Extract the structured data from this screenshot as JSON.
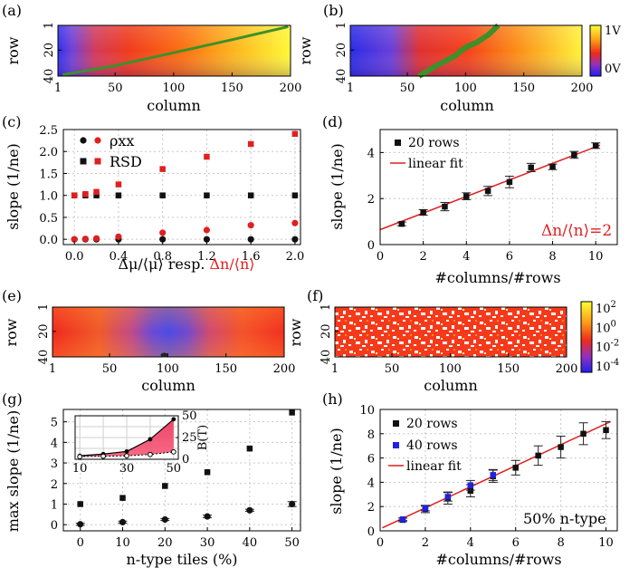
{
  "figure": {
    "panel_labels": [
      "(a)",
      "(b)",
      "(c)",
      "(d)",
      "(e)",
      "(f)",
      "(g)",
      "(h)"
    ]
  },
  "chart_data": [
    {
      "id": "a",
      "type": "heatmap",
      "title": "",
      "xlabel": "column",
      "ylabel": "row",
      "xlim": [
        1,
        200
      ],
      "ylim": [
        1,
        40
      ],
      "xticks": [
        "1",
        "50",
        "100",
        "150",
        "200"
      ],
      "yticks": [
        "1",
        "20",
        "40"
      ],
      "color_range": [
        "0V",
        "1V"
      ],
      "line": {
        "color": "#3f8f2a",
        "x": [
          5,
          50,
          100,
          150,
          198
        ],
        "y": [
          39,
          32,
          22,
          12,
          2
        ]
      }
    },
    {
      "id": "b",
      "type": "heatmap",
      "title": "",
      "xlabel": "column",
      "ylabel": "row",
      "xlim": [
        1,
        200
      ],
      "ylim": [
        1,
        40
      ],
      "xticks": [
        "1",
        "50",
        "100",
        "150",
        "200"
      ],
      "yticks": [
        "1",
        "20",
        "40"
      ],
      "colorbar": {
        "ticks": [
          "1V",
          "0V"
        ]
      },
      "line": {
        "color": "#3f8f2a",
        "x": [
          60,
          75,
          90,
          100,
          110,
          120,
          128
        ],
        "y": [
          40,
          32,
          25,
          18,
          14,
          8,
          1
        ]
      }
    },
    {
      "id": "c",
      "type": "scatter",
      "xlabel_parts": [
        "Δμ/⟨μ⟩  resp. ",
        "Δn/⟨n⟩"
      ],
      "ylabel": "slope (1/ne)",
      "xlim": [
        -0.1,
        2.05
      ],
      "ylim": [
        -0.12,
        2.5
      ],
      "xticks": [
        "0.0",
        "0.4",
        "0.8",
        "1.2",
        "1.6",
        "2.0"
      ],
      "yticks": [
        "0.0",
        "0.5",
        "1.0",
        "1.5",
        "2.0",
        "2.5"
      ],
      "legend": [
        "ρxx",
        "RSD"
      ],
      "series": [
        {
          "name": "ρxx (Δμ)",
          "marker": "circle",
          "color": "#111111",
          "x": [
            0,
            0.1,
            0.2,
            0.4,
            0.8,
            1.2,
            1.6,
            2.0
          ],
          "y": [
            0,
            0,
            0,
            0,
            0,
            0,
            0,
            0
          ]
        },
        {
          "name": "ρxx (Δn)",
          "marker": "circle",
          "color": "#e01f1f",
          "x": [
            0,
            0.1,
            0.2,
            0.4,
            0.8,
            1.2,
            1.6,
            2.0
          ],
          "y": [
            0,
            0.01,
            0.02,
            0.06,
            0.15,
            0.21,
            0.32,
            0.37
          ]
        },
        {
          "name": "RSD (Δμ)",
          "marker": "square",
          "color": "#111111",
          "x": [
            0,
            0.1,
            0.2,
            0.4,
            0.8,
            1.2,
            1.6,
            2.0
          ],
          "y": [
            1,
            1,
            1,
            1,
            1,
            1,
            1,
            1
          ]
        },
        {
          "name": "RSD (Δn)",
          "marker": "square",
          "color": "#e01f1f",
          "x": [
            0,
            0.1,
            0.2,
            0.4,
            0.8,
            1.2,
            1.6,
            2.0
          ],
          "y": [
            1.0,
            1.03,
            1.08,
            1.25,
            1.6,
            1.88,
            2.17,
            2.4
          ]
        }
      ]
    },
    {
      "id": "d",
      "type": "scatter",
      "xlabel": "#columns/#rows",
      "ylabel": "slope (1/ne)",
      "xlim": [
        0,
        11
      ],
      "ylim": [
        0,
        5
      ],
      "xticks": [
        "0",
        "2",
        "4",
        "6",
        "8",
        "10"
      ],
      "yticks": [
        "0",
        "2",
        "4"
      ],
      "legend": [
        "20 rows",
        "linear fit"
      ],
      "annotation": "Δn/⟨n⟩=2",
      "series": [
        {
          "name": "20 rows",
          "marker": "square",
          "color": "#111111",
          "x": [
            1,
            2,
            3,
            4,
            5,
            6,
            7,
            8,
            9,
            10
          ],
          "y": [
            0.9,
            1.4,
            1.65,
            2.1,
            2.33,
            2.72,
            3.35,
            3.38,
            3.9,
            4.3
          ],
          "err": [
            0.08,
            0.12,
            0.18,
            0.15,
            0.2,
            0.25,
            0.18,
            0.12,
            0.15,
            0.12
          ]
        }
      ],
      "fit": {
        "color": "#e01f1f",
        "x": [
          0,
          10.2
        ],
        "y": [
          0.65,
          4.32
        ]
      }
    },
    {
      "id": "e",
      "type": "heatmap",
      "xlabel": "column",
      "ylabel": "row",
      "xlim": [
        1,
        200
      ],
      "ylim": [
        1,
        40
      ],
      "xticks": [
        "1",
        "50",
        "100",
        "150",
        "200"
      ],
      "yticks": [
        "1",
        "20",
        "40"
      ]
    },
    {
      "id": "f",
      "type": "heatmap",
      "xlabel": "column",
      "ylabel": "row",
      "xlim": [
        1,
        200
      ],
      "ylim": [
        1,
        40
      ],
      "xticks": [
        "1",
        "50",
        "100",
        "150",
        "200"
      ],
      "yticks": [
        "1",
        "20",
        "40"
      ],
      "colorbar": {
        "ticks": [
          "2",
          "0",
          "-2",
          "-4"
        ],
        "base": "10"
      }
    },
    {
      "id": "g",
      "type": "scatter",
      "xlabel": "n-type tiles (%)",
      "ylabel": "max slope (1/ne)",
      "xlim": [
        -4,
        52
      ],
      "ylim": [
        -0.3,
        5.6
      ],
      "xticks": [
        "0",
        "10",
        "20",
        "30",
        "40",
        "50"
      ],
      "yticks": [
        "0",
        "1",
        "2",
        "3",
        "4",
        "5"
      ],
      "series": [
        {
          "name": "RSD max slope",
          "marker": "square",
          "color": "#111111",
          "x": [
            0,
            10,
            20,
            30,
            40,
            50
          ],
          "y": [
            1.0,
            1.3,
            1.88,
            2.55,
            3.7,
            5.45
          ]
        },
        {
          "name": "ρxx max slope",
          "marker": "circle",
          "color": "#111111",
          "x": [
            0,
            10,
            20,
            30,
            40,
            50
          ],
          "y": [
            0.02,
            0.12,
            0.25,
            0.4,
            0.7,
            1.0
          ],
          "err": [
            0.05,
            0.05,
            0.05,
            0.06,
            0.05,
            0.12
          ]
        }
      ],
      "inset": {
        "type": "area",
        "xlim": [
          8,
          52
        ],
        "ylim": [
          0,
          50
        ],
        "xticks": [
          "10",
          "30",
          "50"
        ],
        "yticks_right": [
          "0",
          "25",
          "50"
        ],
        "ylabel_right": "B(T)",
        "upper": {
          "x": [
            10,
            20,
            30,
            40,
            50
          ],
          "y": [
            4,
            6,
            9,
            23,
            46
          ]
        },
        "lower": {
          "x": [
            10,
            20,
            30,
            40,
            50
          ],
          "y": [
            3,
            3.5,
            4,
            5.5,
            8.5
          ]
        }
      }
    },
    {
      "id": "h",
      "type": "scatter",
      "xlabel": "#columns/#rows",
      "ylabel": "slope (1/ne)",
      "xlim": [
        0,
        10.5
      ],
      "ylim": [
        0,
        10
      ],
      "xticks": [
        "0",
        "2",
        "4",
        "6",
        "8",
        "10"
      ],
      "yticks": [
        "0",
        "2",
        "4",
        "6",
        "8",
        "10"
      ],
      "legend": [
        "20 rows",
        "40 rows",
        "linear fit"
      ],
      "annotation": "50% n-type",
      "series": [
        {
          "name": "20 rows",
          "marker": "square",
          "color": "#111111",
          "x": [
            1,
            2,
            3,
            4,
            5,
            6,
            7,
            8,
            9,
            10
          ],
          "y": [
            0.9,
            1.8,
            2.7,
            3.3,
            4.5,
            5.2,
            6.2,
            6.9,
            8.0,
            8.3
          ],
          "err": [
            0.15,
            0.3,
            0.5,
            0.5,
            0.5,
            0.6,
            0.8,
            0.9,
            0.9,
            0.7
          ]
        },
        {
          "name": "40 rows",
          "marker": "square",
          "color": "#2222dd",
          "x": [
            1,
            2,
            3,
            4,
            5
          ],
          "y": [
            0.95,
            1.85,
            2.8,
            3.75,
            4.6
          ],
          "err": [
            0.1,
            0.2,
            0.35,
            0.4,
            0.45
          ]
        }
      ],
      "fit": {
        "color": "#e01f1f",
        "x": [
          0.1,
          10.2
        ],
        "y": [
          0.25,
          9.0
        ]
      }
    }
  ]
}
